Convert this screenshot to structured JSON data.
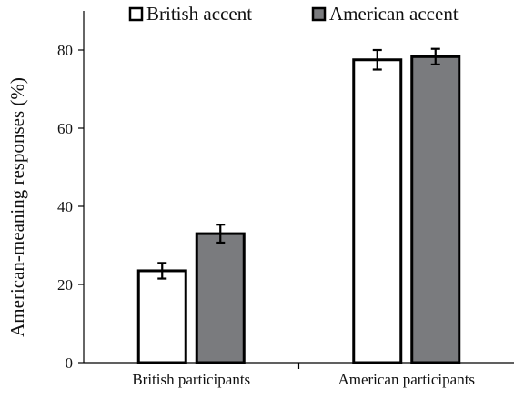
{
  "chart_data": {
    "type": "bar",
    "title": "",
    "xlabel": "",
    "ylabel": "American-meaning responses (%)",
    "categories": [
      "British participants",
      "American participants"
    ],
    "series": [
      {
        "name": "British accent",
        "values": [
          23.5,
          77.5
        ],
        "errors": [
          2.0,
          2.5
        ],
        "color": "#ffffff"
      },
      {
        "name": "American accent",
        "values": [
          33.0,
          78.3
        ],
        "errors": [
          2.3,
          2.0
        ],
        "color": "#7a7b7e"
      }
    ],
    "ylim": [
      0,
      90
    ],
    "yticks": [
      0,
      20,
      40,
      60,
      80
    ],
    "grid": false,
    "legend_position": "top"
  }
}
